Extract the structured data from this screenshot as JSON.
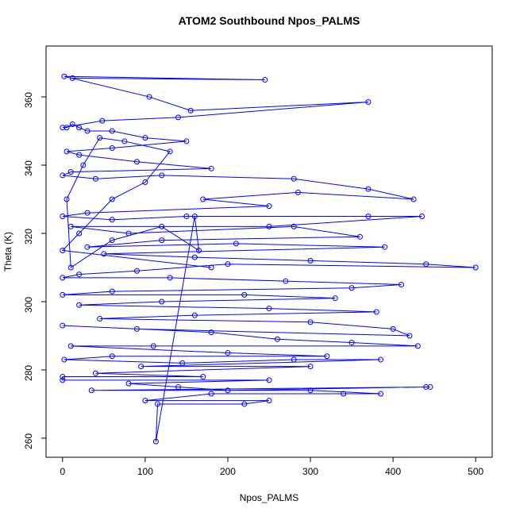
{
  "chart_data": {
    "type": "line",
    "title": "ATOM2 Southbound Npos_PALMS",
    "x_label": "Npos_PALMS",
    "y_label": "Theta (K)",
    "markers": true,
    "grid": false,
    "xlim": [
      -20,
      520
    ],
    "ylim": [
      254.4,
      374.9
    ],
    "xticks": [
      0,
      100,
      200,
      300,
      400,
      500
    ],
    "yticks": [
      260,
      280,
      300,
      320,
      340,
      360
    ],
    "x": [
      12,
      245,
      2,
      105,
      155,
      370,
      140,
      48,
      0,
      5,
      12,
      20,
      30,
      60,
      100,
      150,
      60,
      5,
      20,
      90,
      180,
      10,
      0,
      40,
      120,
      280,
      370,
      425,
      285,
      170,
      250,
      30,
      0,
      60,
      150,
      370,
      435,
      250,
      10,
      80,
      280,
      360,
      120,
      30,
      210,
      390,
      50,
      160,
      300,
      440,
      500,
      200,
      90,
      20,
      0,
      130,
      270,
      410,
      350,
      60,
      0,
      220,
      330,
      120,
      20,
      250,
      380,
      160,
      45,
      300,
      400,
      420,
      90,
      0,
      180,
      260,
      350,
      430,
      110,
      10,
      200,
      320,
      60,
      2,
      145,
      280,
      385,
      95,
      300,
      40,
      170,
      0,
      0,
      250,
      80,
      140,
      200,
      440,
      445,
      35,
      300,
      385,
      340,
      180,
      100,
      250,
      220,
      115,
      113,
      160,
      165,
      120,
      60,
      10,
      5,
      25,
      45,
      75,
      130,
      100,
      60,
      20,
      0,
      180
    ],
    "series": [
      {
        "name": "Theta",
        "color": "#0000ff",
        "values": [
          365.5,
          365,
          366,
          360,
          356,
          358.5,
          354,
          353,
          351,
          351,
          352,
          351,
          350,
          350,
          348,
          347,
          345,
          344,
          343,
          341,
          339,
          338,
          337,
          336,
          337,
          336,
          333,
          330,
          332,
          330,
          328,
          326,
          325,
          324,
          325,
          325,
          325,
          322,
          322,
          320,
          322,
          319,
          318,
          316,
          317,
          316,
          314,
          313,
          312,
          311,
          310,
          311,
          309,
          308,
          307,
          307,
          306,
          305,
          304,
          303,
          302,
          302,
          301,
          300,
          299,
          298,
          297,
          296,
          295,
          294,
          292,
          290,
          292,
          293,
          291,
          289,
          288,
          287,
          287,
          287,
          285,
          284,
          284,
          283,
          282,
          283,
          283,
          281,
          281,
          279,
          278,
          278,
          277,
          277,
          276,
          275,
          274,
          275,
          275,
          274,
          274,
          273,
          273,
          273,
          271,
          271,
          270,
          270,
          259,
          325,
          315,
          322,
          318,
          310,
          330,
          340,
          348,
          347,
          344,
          335,
          330,
          320,
          315,
          310
        ]
      }
    ]
  }
}
